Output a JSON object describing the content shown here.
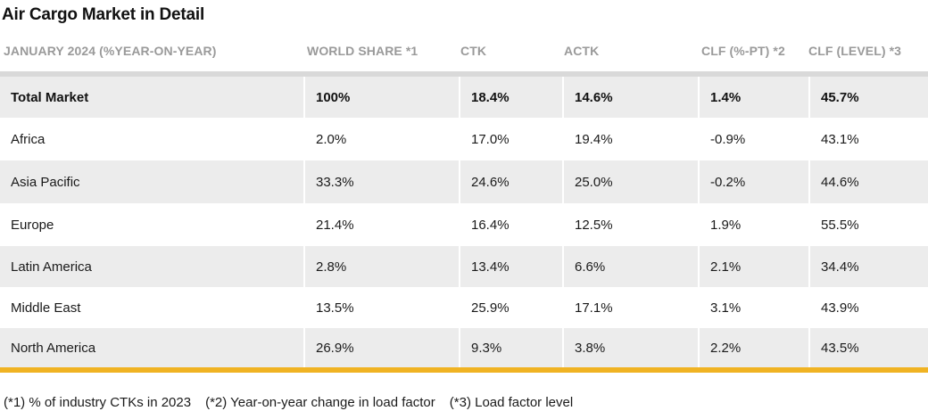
{
  "title": "Air Cargo Market in Detail",
  "headers": [
    "JANUARY 2024 (%YEAR-ON-YEAR)",
    "WORLD SHARE *1",
    "CTK",
    "ACTK",
    "CLF (%-PT) *2",
    "CLF (LEVEL) *3"
  ],
  "rows": [
    [
      "Total Market",
      "100%",
      "18.4%",
      "14.6%",
      "1.4%",
      "45.7%"
    ],
    [
      "Africa",
      "2.0%",
      "17.0%",
      "19.4%",
      "-0.9%",
      "43.1%"
    ],
    [
      "Asia Pacific",
      "33.3%",
      "24.6%",
      "25.0%",
      "-0.2%",
      "44.6%"
    ],
    [
      "Europe",
      "21.4%",
      "16.4%",
      "12.5%",
      "1.9%",
      "55.5%"
    ],
    [
      "Latin America",
      "2.8%",
      "13.4%",
      "6.6%",
      "2.1%",
      "34.4%"
    ],
    [
      "Middle East",
      "13.5%",
      "25.9%",
      "17.1%",
      "3.1%",
      "43.9%"
    ],
    [
      "North America",
      "26.9%",
      "9.3%",
      "3.8%",
      "2.2%",
      "43.5%"
    ]
  ],
  "footnotes": [
    "(*1) % of industry CTKs in 2023",
    "(*2) Year-on-year change in load factor",
    "(*3) Load factor level"
  ],
  "colors": {
    "accent_rule": "#f0b323",
    "row_shade": "#ececec",
    "header_text": "#9a9a9a"
  }
}
